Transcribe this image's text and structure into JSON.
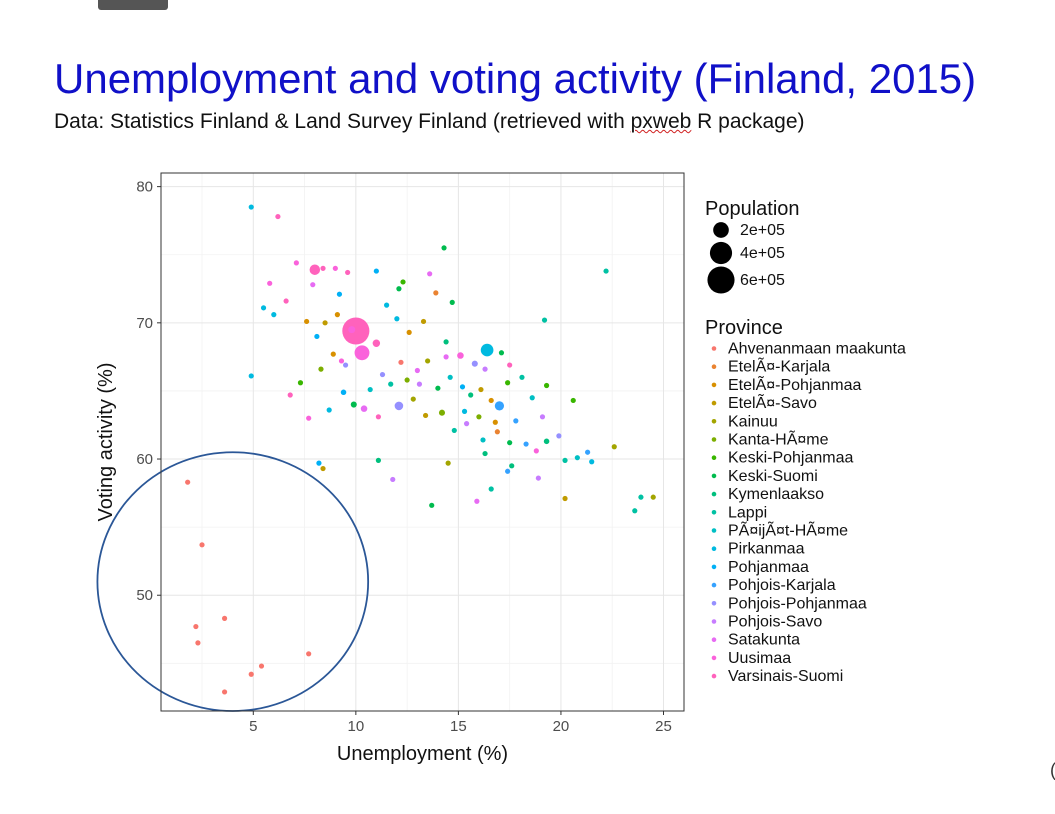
{
  "slide": {
    "title": "Unemployment and voting activity (Finland, 2015)",
    "subtitle_before": "Data: Statistics Finland & Land Survey Finland (retrieved with ",
    "subtitle_pkg": "pxweb",
    "subtitle_after": " R package)"
  },
  "chart_data": {
    "type": "scatter",
    "xlabel": "Unemployment (%)",
    "ylabel": "Voting activity (%)",
    "xlim": [
      0.5,
      26
    ],
    "ylim": [
      41.5,
      81
    ],
    "xticks": [
      5,
      10,
      15,
      20,
      25
    ],
    "yticks": [
      50,
      60,
      70,
      80
    ],
    "grid": true,
    "size_legend": {
      "title": "Population",
      "entries": [
        {
          "label": "2e+05",
          "value": 200000
        },
        {
          "label": "4e+05",
          "value": 400000
        },
        {
          "label": "6e+05",
          "value": 600000
        }
      ]
    },
    "legend": {
      "title": "Province",
      "placement": "right",
      "entries": [
        {
          "name": "Ahvenanmaan maakunta",
          "color": "#F8766D"
        },
        {
          "name": "EtelÃ¤-Karjala",
          "color": "#EA8331"
        },
        {
          "name": "EtelÃ¤-Pohjanmaa",
          "color": "#D89000"
        },
        {
          "name": "EtelÃ¤-Savo",
          "color": "#C09B00"
        },
        {
          "name": "Kainuu",
          "color": "#A3A500"
        },
        {
          "name": "Kanta-HÃ¤me",
          "color": "#7CAE00"
        },
        {
          "name": "Keski-Pohjanmaa",
          "color": "#39B600"
        },
        {
          "name": "Keski-Suomi",
          "color": "#00BB4E"
        },
        {
          "name": "Kymenlaakso",
          "color": "#00BF7D"
        },
        {
          "name": "Lappi",
          "color": "#00C1A3"
        },
        {
          "name": "PÃ¤ijÃ¤t-HÃ¤me",
          "color": "#00BFC4"
        },
        {
          "name": "Pirkanmaa",
          "color": "#00BAE0"
        },
        {
          "name": "Pohjanmaa",
          "color": "#00B0F6"
        },
        {
          "name": "Pohjois-Karjala",
          "color": "#35A2FF"
        },
        {
          "name": "Pohjois-Pohjanmaa",
          "color": "#9590FF"
        },
        {
          "name": "Pohjois-Savo",
          "color": "#C77CFF"
        },
        {
          "name": "Satakunta",
          "color": "#E76BF3"
        },
        {
          "name": "Uusimaa",
          "color": "#FA62DB"
        },
        {
          "name": "Varsinais-Suomi",
          "color": "#FF62BC"
        }
      ]
    },
    "annotation": {
      "shape": "ellipse",
      "color": "#2b5797",
      "center": [
        4.0,
        51.0
      ],
      "radii": [
        6.6,
        9.5
      ]
    },
    "points": [
      {
        "x": 1.8,
        "y": 58.3,
        "p": 0,
        "pop": 1000
      },
      {
        "x": 2.5,
        "y": 53.7,
        "p": 0,
        "pop": 1000
      },
      {
        "x": 2.2,
        "y": 47.7,
        "p": 0,
        "pop": 1500
      },
      {
        "x": 2.3,
        "y": 46.5,
        "p": 0,
        "pop": 1500
      },
      {
        "x": 3.6,
        "y": 48.3,
        "p": 0,
        "pop": 1000
      },
      {
        "x": 3.6,
        "y": 42.9,
        "p": 0,
        "pop": 1200
      },
      {
        "x": 4.9,
        "y": 44.2,
        "p": 0,
        "pop": 1200
      },
      {
        "x": 5.4,
        "y": 44.8,
        "p": 0,
        "pop": 1000
      },
      {
        "x": 7.7,
        "y": 45.7,
        "p": 0,
        "pop": 1000
      },
      {
        "x": 4.9,
        "y": 78.5,
        "p": 11,
        "pop": 2000
      },
      {
        "x": 6.2,
        "y": 77.8,
        "p": 18,
        "pop": 3000
      },
      {
        "x": 8.4,
        "y": 74.0,
        "p": 18,
        "pop": 20000
      },
      {
        "x": 7.1,
        "y": 74.4,
        "p": 17,
        "pop": 4000
      },
      {
        "x": 8.0,
        "y": 73.9,
        "p": 18,
        "pop": 90000
      },
      {
        "x": 9.0,
        "y": 74.0,
        "p": 17,
        "pop": 10000
      },
      {
        "x": 9.6,
        "y": 73.7,
        "p": 18,
        "pop": 15000
      },
      {
        "x": 5.8,
        "y": 72.9,
        "p": 17,
        "pop": 10000
      },
      {
        "x": 6.6,
        "y": 71.6,
        "p": 18,
        "pop": 6000
      },
      {
        "x": 7.9,
        "y": 72.8,
        "p": 16,
        "pop": 8000
      },
      {
        "x": 9.2,
        "y": 72.1,
        "p": 12,
        "pop": 3000
      },
      {
        "x": 11.0,
        "y": 73.8,
        "p": 12,
        "pop": 5000
      },
      {
        "x": 12.1,
        "y": 72.5,
        "p": 7,
        "pop": 2000
      },
      {
        "x": 12.3,
        "y": 73.0,
        "p": 6,
        "pop": 3000
      },
      {
        "x": 13.6,
        "y": 73.6,
        "p": 16,
        "pop": 1500
      },
      {
        "x": 14.3,
        "y": 75.5,
        "p": 7,
        "pop": 1500
      },
      {
        "x": 5.5,
        "y": 71.1,
        "p": 11,
        "pop": 6000
      },
      {
        "x": 6.0,
        "y": 70.6,
        "p": 11,
        "pop": 3000
      },
      {
        "x": 7.6,
        "y": 70.1,
        "p": 2,
        "pop": 5000
      },
      {
        "x": 8.5,
        "y": 70.0,
        "p": 3,
        "pop": 3000
      },
      {
        "x": 9.1,
        "y": 70.6,
        "p": 2,
        "pop": 4000
      },
      {
        "x": 9.8,
        "y": 69.5,
        "p": 17,
        "pop": 40000
      },
      {
        "x": 10.0,
        "y": 69.4,
        "p": 18,
        "pop": 600000
      },
      {
        "x": 10.3,
        "y": 67.8,
        "p": 17,
        "pop": 180000
      },
      {
        "x": 11.0,
        "y": 68.5,
        "p": 18,
        "pop": 45000
      },
      {
        "x": 11.5,
        "y": 71.3,
        "p": 11,
        "pop": 4000
      },
      {
        "x": 12.0,
        "y": 70.3,
        "p": 11,
        "pop": 5000
      },
      {
        "x": 12.6,
        "y": 69.3,
        "p": 2,
        "pop": 3000
      },
      {
        "x": 13.3,
        "y": 70.1,
        "p": 3,
        "pop": 2000
      },
      {
        "x": 13.9,
        "y": 72.2,
        "p": 1,
        "pop": 3000
      },
      {
        "x": 14.7,
        "y": 71.5,
        "p": 7,
        "pop": 2000
      },
      {
        "x": 13.5,
        "y": 67.2,
        "p": 4,
        "pop": 5000
      },
      {
        "x": 14.4,
        "y": 68.6,
        "p": 8,
        "pop": 6000
      },
      {
        "x": 15.1,
        "y": 67.6,
        "p": 17,
        "pop": 35000
      },
      {
        "x": 15.8,
        "y": 67.0,
        "p": 14,
        "pop": 30000
      },
      {
        "x": 16.3,
        "y": 66.6,
        "p": 15,
        "pop": 8000
      },
      {
        "x": 16.4,
        "y": 68.0,
        "p": 11,
        "pop": 130000
      },
      {
        "x": 17.1,
        "y": 67.8,
        "p": 7,
        "pop": 3000
      },
      {
        "x": 17.5,
        "y": 66.9,
        "p": 18,
        "pop": 10000
      },
      {
        "x": 8.1,
        "y": 69.0,
        "p": 12,
        "pop": 2000
      },
      {
        "x": 8.9,
        "y": 67.7,
        "p": 2,
        "pop": 4000
      },
      {
        "x": 9.3,
        "y": 67.2,
        "p": 17,
        "pop": 8000
      },
      {
        "x": 11.3,
        "y": 66.2,
        "p": 14,
        "pop": 5000
      },
      {
        "x": 11.7,
        "y": 65.5,
        "p": 9,
        "pop": 3000
      },
      {
        "x": 12.5,
        "y": 65.8,
        "p": 5,
        "pop": 4000
      },
      {
        "x": 13.0,
        "y": 66.5,
        "p": 16,
        "pop": 6000
      },
      {
        "x": 14.0,
        "y": 65.2,
        "p": 7,
        "pop": 5000
      },
      {
        "x": 14.6,
        "y": 66.0,
        "p": 10,
        "pop": 7000
      },
      {
        "x": 15.2,
        "y": 65.3,
        "p": 12,
        "pop": 4000
      },
      {
        "x": 15.6,
        "y": 64.7,
        "p": 8,
        "pop": 20000
      },
      {
        "x": 16.1,
        "y": 65.1,
        "p": 3,
        "pop": 8000
      },
      {
        "x": 16.6,
        "y": 64.3,
        "p": 2,
        "pop": 6000
      },
      {
        "x": 17.0,
        "y": 63.9,
        "p": 13,
        "pop": 70000
      },
      {
        "x": 17.4,
        "y": 65.6,
        "p": 6,
        "pop": 4000
      },
      {
        "x": 18.1,
        "y": 66.0,
        "p": 9,
        "pop": 3000
      },
      {
        "x": 7.3,
        "y": 65.6,
        "p": 6,
        "pop": 3000
      },
      {
        "x": 6.8,
        "y": 64.7,
        "p": 18,
        "pop": 4000
      },
      {
        "x": 8.7,
        "y": 63.6,
        "p": 11,
        "pop": 6000
      },
      {
        "x": 9.4,
        "y": 64.9,
        "p": 12,
        "pop": 25000
      },
      {
        "x": 9.9,
        "y": 64.0,
        "p": 7,
        "pop": 30000
      },
      {
        "x": 10.4,
        "y": 63.7,
        "p": 16,
        "pop": 35000
      },
      {
        "x": 11.1,
        "y": 63.1,
        "p": 18,
        "pop": 6000
      },
      {
        "x": 12.1,
        "y": 63.9,
        "p": 14,
        "pop": 60000
      },
      {
        "x": 12.8,
        "y": 64.4,
        "p": 4,
        "pop": 5000
      },
      {
        "x": 13.4,
        "y": 63.2,
        "p": 3,
        "pop": 6000
      },
      {
        "x": 14.2,
        "y": 63.4,
        "p": 5,
        "pop": 30000
      },
      {
        "x": 14.8,
        "y": 62.1,
        "p": 9,
        "pop": 8000
      },
      {
        "x": 15.4,
        "y": 62.6,
        "p": 15,
        "pop": 6000
      },
      {
        "x": 16.2,
        "y": 61.4,
        "p": 10,
        "pop": 7000
      },
      {
        "x": 16.9,
        "y": 62.0,
        "p": 1,
        "pop": 4000
      },
      {
        "x": 17.5,
        "y": 61.2,
        "p": 7,
        "pop": 3000
      },
      {
        "x": 18.3,
        "y": 61.1,
        "p": 13,
        "pop": 5000
      },
      {
        "x": 18.8,
        "y": 60.6,
        "p": 17,
        "pop": 6000
      },
      {
        "x": 19.3,
        "y": 61.3,
        "p": 8,
        "pop": 25000
      },
      {
        "x": 19.9,
        "y": 61.7,
        "p": 14,
        "pop": 4000
      },
      {
        "x": 19.1,
        "y": 63.1,
        "p": 15,
        "pop": 3000
      },
      {
        "x": 18.6,
        "y": 64.5,
        "p": 10,
        "pop": 3000
      },
      {
        "x": 19.3,
        "y": 65.4,
        "p": 6,
        "pop": 2000
      },
      {
        "x": 19.2,
        "y": 70.2,
        "p": 9,
        "pop": 2000
      },
      {
        "x": 20.6,
        "y": 64.3,
        "p": 6,
        "pop": 2000
      },
      {
        "x": 20.2,
        "y": 59.9,
        "p": 9,
        "pop": 3000
      },
      {
        "x": 20.8,
        "y": 60.1,
        "p": 10,
        "pop": 20000
      },
      {
        "x": 21.3,
        "y": 60.5,
        "p": 13,
        "pop": 15000
      },
      {
        "x": 21.5,
        "y": 59.8,
        "p": 11,
        "pop": 3000
      },
      {
        "x": 22.6,
        "y": 60.9,
        "p": 4,
        "pop": 5000
      },
      {
        "x": 20.2,
        "y": 57.1,
        "p": 3,
        "pop": 3000
      },
      {
        "x": 22.2,
        "y": 73.8,
        "p": 9,
        "pop": 2000
      },
      {
        "x": 23.6,
        "y": 56.2,
        "p": 9,
        "pop": 3000
      },
      {
        "x": 23.9,
        "y": 57.2,
        "p": 9,
        "pop": 2000
      },
      {
        "x": 24.5,
        "y": 57.2,
        "p": 4,
        "pop": 5000
      },
      {
        "x": 4.9,
        "y": 66.1,
        "p": 11,
        "pop": 4000
      },
      {
        "x": 8.2,
        "y": 59.7,
        "p": 12,
        "pop": 3000
      },
      {
        "x": 8.4,
        "y": 59.3,
        "p": 3,
        "pop": 2000
      },
      {
        "x": 11.1,
        "y": 59.9,
        "p": 8,
        "pop": 1500
      },
      {
        "x": 11.8,
        "y": 58.5,
        "p": 15,
        "pop": 3000
      },
      {
        "x": 13.7,
        "y": 56.6,
        "p": 7,
        "pop": 1500
      },
      {
        "x": 14.5,
        "y": 59.7,
        "p": 4,
        "pop": 3000
      },
      {
        "x": 15.9,
        "y": 56.9,
        "p": 16,
        "pop": 3000
      },
      {
        "x": 16.6,
        "y": 57.8,
        "p": 9,
        "pop": 2000
      },
      {
        "x": 17.4,
        "y": 59.1,
        "p": 13,
        "pop": 3000
      },
      {
        "x": 17.6,
        "y": 59.5,
        "p": 8,
        "pop": 2000
      },
      {
        "x": 18.9,
        "y": 58.6,
        "p": 15,
        "pop": 2000
      },
      {
        "x": 16.3,
        "y": 60.4,
        "p": 8,
        "pop": 3000
      },
      {
        "x": 7.7,
        "y": 63.0,
        "p": 17,
        "pop": 4000
      },
      {
        "x": 8.3,
        "y": 66.6,
        "p": 5,
        "pop": 3000
      },
      {
        "x": 9.5,
        "y": 66.9,
        "p": 14,
        "pop": 5000
      },
      {
        "x": 10.7,
        "y": 65.1,
        "p": 10,
        "pop": 4000
      },
      {
        "x": 12.2,
        "y": 67.1,
        "p": 0,
        "pop": 2000
      },
      {
        "x": 13.1,
        "y": 65.5,
        "p": 15,
        "pop": 8000
      },
      {
        "x": 14.4,
        "y": 67.5,
        "p": 16,
        "pop": 4000
      },
      {
        "x": 15.3,
        "y": 63.5,
        "p": 11,
        "pop": 5000
      },
      {
        "x": 16.0,
        "y": 63.1,
        "p": 5,
        "pop": 4000
      },
      {
        "x": 16.8,
        "y": 62.7,
        "p": 2,
        "pop": 3000
      },
      {
        "x": 17.8,
        "y": 62.8,
        "p": 13,
        "pop": 3000
      }
    ]
  }
}
